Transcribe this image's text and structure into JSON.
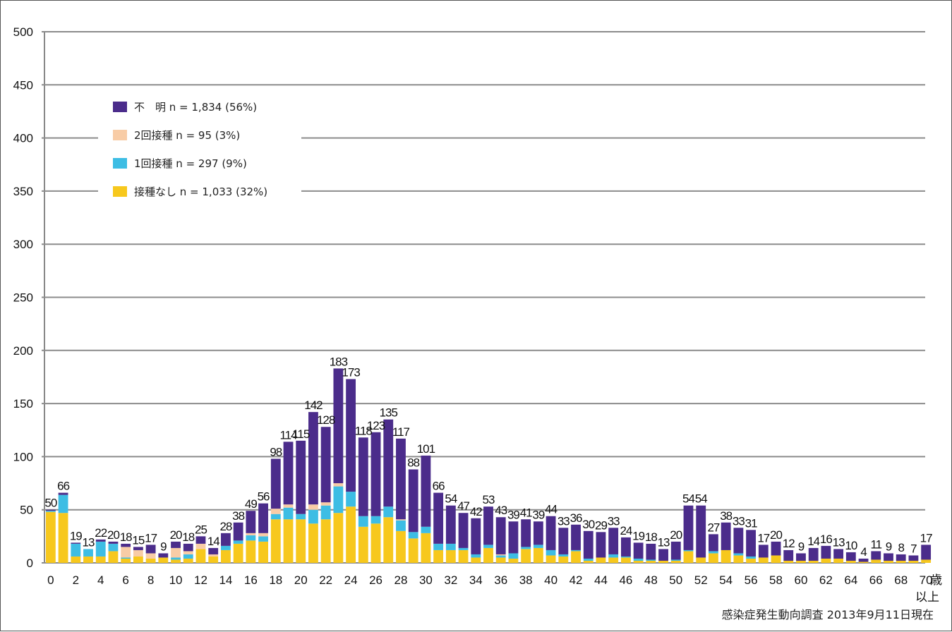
{
  "chart_data": {
    "type": "bar",
    "stacked": true,
    "ylim": [
      0,
      500
    ],
    "yticks": [
      0,
      50,
      100,
      150,
      200,
      250,
      300,
      350,
      400,
      450,
      500
    ],
    "x_tick_labels": [
      "0",
      "2",
      "4",
      "6",
      "8",
      "10",
      "12",
      "14",
      "16",
      "18",
      "20",
      "22",
      "24",
      "26",
      "28",
      "30",
      "32",
      "34",
      "36",
      "38",
      "40",
      "42",
      "44",
      "46",
      "48",
      "50",
      "52",
      "54",
      "56",
      "58",
      "60",
      "62",
      "64",
      "66",
      "68",
      "70"
    ],
    "x_last_category_suffix": [
      "歳",
      "以上"
    ],
    "totals": [
      50,
      66,
      19,
      13,
      22,
      20,
      18,
      15,
      17,
      9,
      20,
      18,
      25,
      14,
      28,
      38,
      49,
      56,
      98,
      114,
      115,
      142,
      128,
      183,
      173,
      118,
      123,
      135,
      117,
      88,
      101,
      66,
      54,
      47,
      42,
      53,
      43,
      39,
      41,
      39,
      44,
      33,
      36,
      30,
      29,
      33,
      24,
      19,
      18,
      13,
      20,
      54,
      54,
      27,
      38,
      33,
      31,
      17,
      20,
      12,
      9,
      14,
      16,
      13,
      10,
      4,
      11,
      9,
      8,
      7,
      17
    ],
    "grid": true,
    "legend_position": "top-left",
    "series": [
      {
        "name": "接種なし n = 1,033 (32%)",
        "color": "#F7C81D",
        "values": [
          48,
          47,
          6,
          6,
          6,
          11,
          4,
          6,
          4,
          5,
          3,
          4,
          13,
          6,
          12,
          18,
          21,
          20,
          41,
          41,
          41,
          37,
          41,
          47,
          53,
          34,
          37,
          43,
          30,
          23,
          28,
          12,
          12,
          12,
          5,
          14,
          5,
          4,
          13,
          14,
          7,
          6,
          11,
          2,
          5,
          5,
          5,
          2,
          2,
          2,
          2,
          11,
          5,
          9,
          12,
          7,
          4,
          5,
          7,
          2,
          2,
          2,
          4,
          4,
          2,
          1,
          3,
          2,
          2,
          2,
          3
        ]
      },
      {
        "name": "1回接種 n = 297 (9%)",
        "color": "#3DBDE4",
        "values": [
          1,
          17,
          12,
          7,
          14,
          7,
          1,
          0,
          0,
          0,
          2,
          4,
          0,
          0,
          4,
          3,
          5,
          5,
          5,
          11,
          5,
          13,
          13,
          25,
          14,
          10,
          7,
          10,
          10,
          6,
          6,
          6,
          6,
          2,
          3,
          3,
          2,
          5,
          2,
          3,
          5,
          2,
          1,
          2,
          0,
          3,
          1,
          2,
          1,
          0,
          1,
          1,
          0,
          2,
          0,
          2,
          2,
          0,
          0,
          0,
          0,
          0,
          0,
          0,
          0,
          0,
          0,
          0,
          0,
          0,
          0
        ]
      },
      {
        "name": "2回接種 n = 95 (3%)",
        "color": "#F8CCA6",
        "values": [
          0,
          0,
          0,
          0,
          0,
          0,
          10,
          6,
          5,
          0,
          9,
          3,
          5,
          2,
          0,
          0,
          2,
          3,
          5,
          3,
          0,
          5,
          3,
          3,
          0,
          0,
          0,
          0,
          1,
          0,
          0,
          0,
          0,
          0,
          0,
          0,
          1,
          0,
          0,
          0,
          0,
          0,
          0,
          0,
          0,
          0,
          0,
          0,
          0,
          0,
          0,
          0,
          0,
          0,
          0,
          0,
          0,
          0,
          0,
          0,
          0,
          0,
          0,
          0,
          0,
          0,
          0,
          0,
          0,
          0,
          0
        ]
      },
      {
        "name": "不　明 n = 1,834 (56%)",
        "color": "#4B2C8B",
        "values": [
          1,
          2,
          1,
          0,
          2,
          2,
          3,
          3,
          8,
          4,
          6,
          7,
          7,
          6,
          12,
          17,
          21,
          28,
          47,
          59,
          69,
          87,
          71,
          108,
          106,
          74,
          79,
          82,
          76,
          59,
          67,
          48,
          36,
          33,
          34,
          36,
          35,
          30,
          26,
          22,
          32,
          25,
          24,
          26,
          24,
          25,
          18,
          15,
          15,
          11,
          17,
          42,
          49,
          16,
          26,
          24,
          25,
          12,
          13,
          10,
          7,
          12,
          12,
          9,
          8,
          3,
          8,
          7,
          6,
          5,
          14
        ]
      }
    ],
    "legend_order": [
      3,
      2,
      1,
      0
    ],
    "note": "感染症発生動向調査 2013年9月11日現在"
  }
}
